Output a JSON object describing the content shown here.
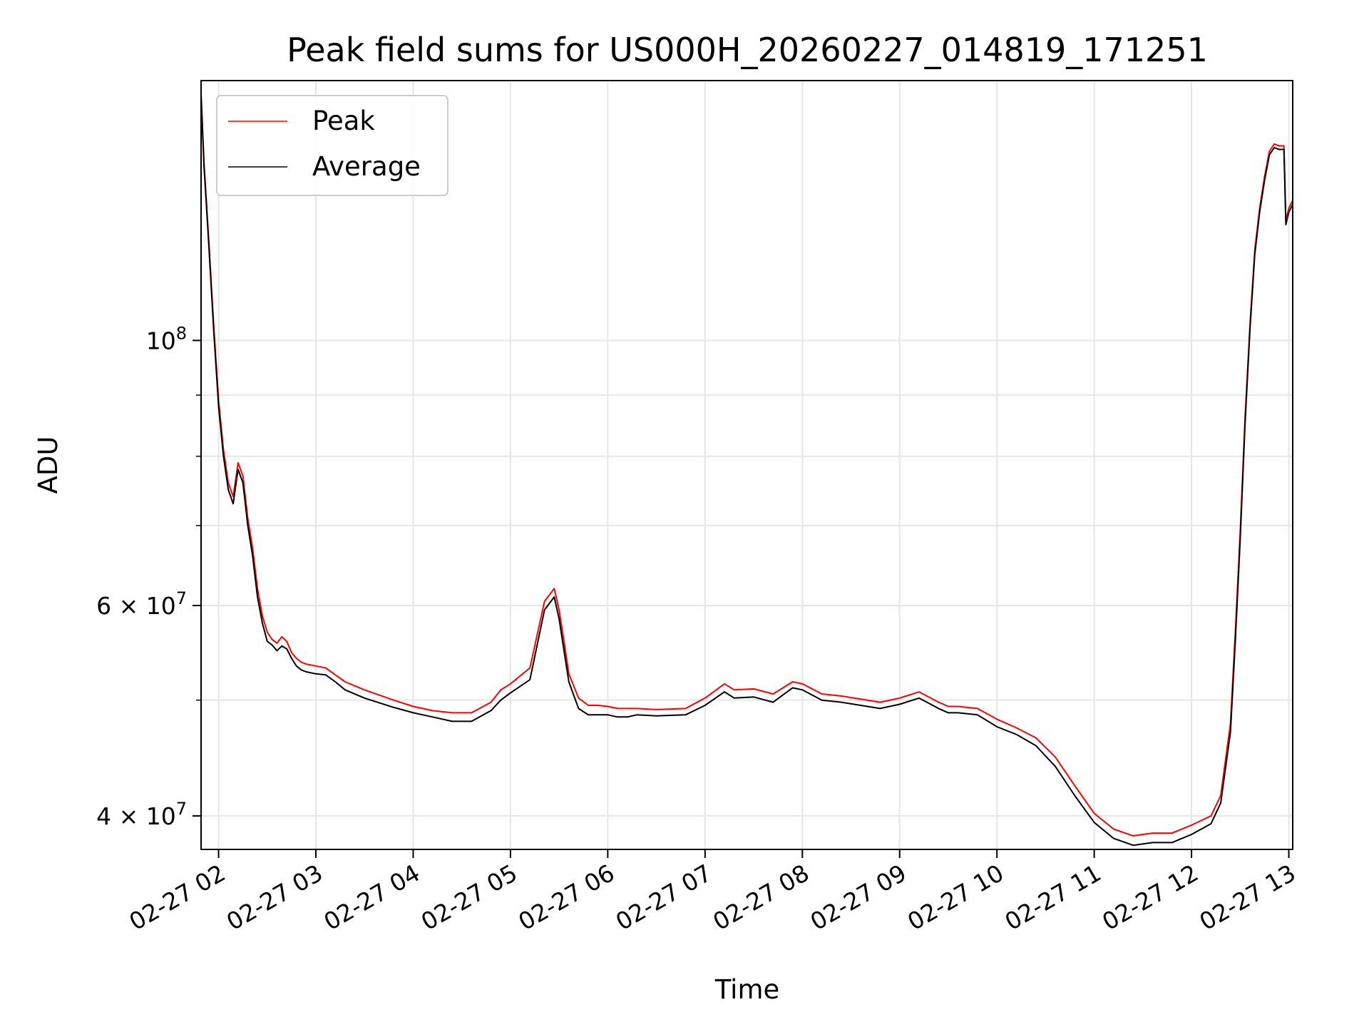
{
  "chart_data": {
    "type": "line",
    "title": "Peak field sums for US000H_20260227_014819_171251",
    "xlabel": "Time",
    "ylabel": "ADU",
    "y_scale": "log",
    "ylim": [
      37500000,
      165000000
    ],
    "xlim_hours": [
      1.82,
      13.04
    ],
    "x_tick_labels": [
      "02-27 02",
      "02-27 03",
      "02-27 04",
      "02-27 05",
      "02-27 06",
      "02-27 07",
      "02-27 08",
      "02-27 09",
      "02-27 10",
      "02-27 11",
      "02-27 12",
      "02-27 13"
    ],
    "x_tick_hours": [
      2,
      3,
      4,
      5,
      6,
      7,
      8,
      9,
      10,
      11,
      12,
      13
    ],
    "y_major_ticks": [
      {
        "value": 40000000,
        "mantissa": "4",
        "exponent": "7"
      },
      {
        "value": 60000000,
        "mantissa": "6",
        "exponent": "7"
      },
      {
        "value": 100000000,
        "mantissa": "",
        "exponent": "8"
      }
    ],
    "y_minor_ticks": [
      50000000,
      70000000,
      80000000,
      90000000
    ],
    "grid": true,
    "legend": {
      "position": "top-left",
      "entries": [
        {
          "label": "Peak",
          "color": "#ff0000"
        },
        {
          "label": "Average",
          "color": "#000000"
        }
      ]
    },
    "series": [
      {
        "name": "Average",
        "color": "#000000",
        "x_hours": [
          1.82,
          1.85,
          1.9,
          1.95,
          2.0,
          2.05,
          2.1,
          2.15,
          2.2,
          2.25,
          2.3,
          2.35,
          2.4,
          2.45,
          2.5,
          2.55,
          2.6,
          2.65,
          2.7,
          2.75,
          2.8,
          2.85,
          2.9,
          3.0,
          3.1,
          3.2,
          3.3,
          3.5,
          3.8,
          4.0,
          4.2,
          4.4,
          4.6,
          4.8,
          4.9,
          5.0,
          5.2,
          5.35,
          5.45,
          5.5,
          5.55,
          5.6,
          5.7,
          5.8,
          5.9,
          6.0,
          6.1,
          6.2,
          6.3,
          6.5,
          6.8,
          7.0,
          7.2,
          7.3,
          7.5,
          7.7,
          7.9,
          8.0,
          8.2,
          8.4,
          8.6,
          8.8,
          9.0,
          9.2,
          9.4,
          9.5,
          9.6,
          9.8,
          10.0,
          10.2,
          10.4,
          10.6,
          10.8,
          11.0,
          11.2,
          11.4,
          11.6,
          11.8,
          12.0,
          12.2,
          12.3,
          12.4,
          12.45,
          12.5,
          12.55,
          12.6,
          12.65,
          12.7,
          12.75,
          12.8,
          12.85,
          12.9,
          12.95,
          12.97,
          13.0,
          13.04
        ],
        "y_millions": [
          160,
          140,
          120,
          102,
          88,
          80,
          75,
          73,
          78,
          76,
          70,
          66,
          61,
          58,
          56,
          55.6,
          55.0,
          55.5,
          55.2,
          54.2,
          53.4,
          53.0,
          52.8,
          52.6,
          52.5,
          51.8,
          51.0,
          50.2,
          49.3,
          48.8,
          48.4,
          48.0,
          48.0,
          49.0,
          50.0,
          50.7,
          52.0,
          59.5,
          61.0,
          58.5,
          55.0,
          51.8,
          49.2,
          48.6,
          48.6,
          48.6,
          48.4,
          48.4,
          48.6,
          48.5,
          48.6,
          49.5,
          50.8,
          50.2,
          50.3,
          49.8,
          51.2,
          51.0,
          50.0,
          49.8,
          49.5,
          49.2,
          49.6,
          50.2,
          49.2,
          48.8,
          48.8,
          48.6,
          47.5,
          46.8,
          45.8,
          44.0,
          41.6,
          39.5,
          38.3,
          37.8,
          38.0,
          38.0,
          38.6,
          39.4,
          41.0,
          47.0,
          56.0,
          68.0,
          85.0,
          102.0,
          118.0,
          128.0,
          136.0,
          143.0,
          145.0,
          144.5,
          144.5,
          125.0,
          128.0,
          130.0
        ]
      },
      {
        "name": "Peak",
        "color": "#ff0000",
        "x_hours": [
          1.82,
          1.85,
          1.9,
          1.95,
          2.0,
          2.05,
          2.1,
          2.15,
          2.2,
          2.25,
          2.3,
          2.35,
          2.4,
          2.45,
          2.5,
          2.55,
          2.6,
          2.65,
          2.7,
          2.75,
          2.8,
          2.85,
          2.9,
          3.0,
          3.1,
          3.2,
          3.3,
          3.5,
          3.8,
          4.0,
          4.2,
          4.4,
          4.6,
          4.8,
          4.9,
          5.0,
          5.2,
          5.35,
          5.45,
          5.5,
          5.55,
          5.6,
          5.7,
          5.8,
          5.9,
          6.0,
          6.1,
          6.2,
          6.3,
          6.5,
          6.8,
          7.0,
          7.2,
          7.3,
          7.5,
          7.7,
          7.9,
          8.0,
          8.2,
          8.4,
          8.6,
          8.8,
          9.0,
          9.2,
          9.4,
          9.5,
          9.6,
          9.8,
          10.0,
          10.2,
          10.4,
          10.6,
          10.8,
          11.0,
          11.2,
          11.4,
          11.6,
          11.8,
          12.0,
          12.2,
          12.3,
          12.4,
          12.45,
          12.5,
          12.55,
          12.6,
          12.65,
          12.7,
          12.75,
          12.8,
          12.85,
          12.9,
          12.95,
          12.97,
          13.0,
          13.04
        ],
        "y_millions": [
          161,
          141,
          121,
          103,
          89,
          81,
          76,
          74,
          79,
          77,
          71,
          67,
          62,
          58.8,
          57.0,
          56.2,
          55.8,
          56.5,
          56.0,
          54.8,
          54.2,
          53.8,
          53.6,
          53.4,
          53.2,
          52.5,
          51.8,
          51.0,
          50.0,
          49.4,
          49.0,
          48.8,
          48.8,
          49.8,
          51.0,
          51.6,
          53.2,
          60.5,
          62.0,
          59.5,
          56.0,
          52.6,
          50.2,
          49.5,
          49.5,
          49.4,
          49.2,
          49.2,
          49.2,
          49.1,
          49.2,
          50.2,
          51.6,
          51.0,
          51.1,
          50.6,
          51.8,
          51.6,
          50.6,
          50.4,
          50.1,
          49.8,
          50.2,
          50.8,
          49.8,
          49.4,
          49.4,
          49.2,
          48.2,
          47.4,
          46.5,
          44.8,
          42.4,
          40.2,
          39.0,
          38.5,
          38.7,
          38.7,
          39.3,
          40.0,
          41.6,
          47.8,
          57.0,
          69.0,
          86.0,
          103.0,
          119.0,
          129.0,
          137.0,
          144.0,
          146.0,
          145.5,
          145.5,
          126.0,
          129.0,
          131.0
        ]
      }
    ]
  }
}
